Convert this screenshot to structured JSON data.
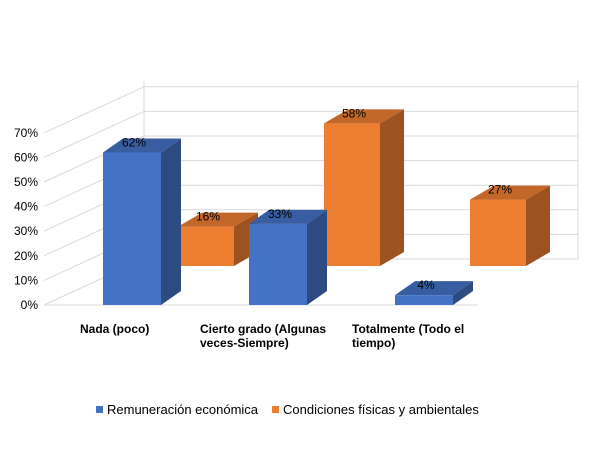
{
  "chart_data": {
    "type": "bar",
    "categories": [
      [
        "Nada (poco)"
      ],
      [
        "Cierto grado (Algunas",
        "veces-Siempre)"
      ],
      [
        "Totalmente (Todo el",
        "tiempo)"
      ]
    ],
    "series": [
      {
        "name": "Remuneración económica",
        "color": "#4472C4",
        "values": [
          62,
          33,
          4
        ],
        "labels": [
          "62%",
          "33%",
          "4%"
        ]
      },
      {
        "name": "Condiciones físicas y ambientales",
        "color": "#ED7D31",
        "values": [
          16,
          58,
          27
        ],
        "labels": [
          "16%",
          "58%",
          "27%"
        ]
      }
    ],
    "yticks": [
      "0%",
      "10%",
      "20%",
      "30%",
      "40%",
      "50%",
      "60%",
      "70%"
    ],
    "ylim": [
      0,
      70
    ],
    "grid": true,
    "legend_position": "bottom",
    "style": "3d-clustered-column"
  }
}
